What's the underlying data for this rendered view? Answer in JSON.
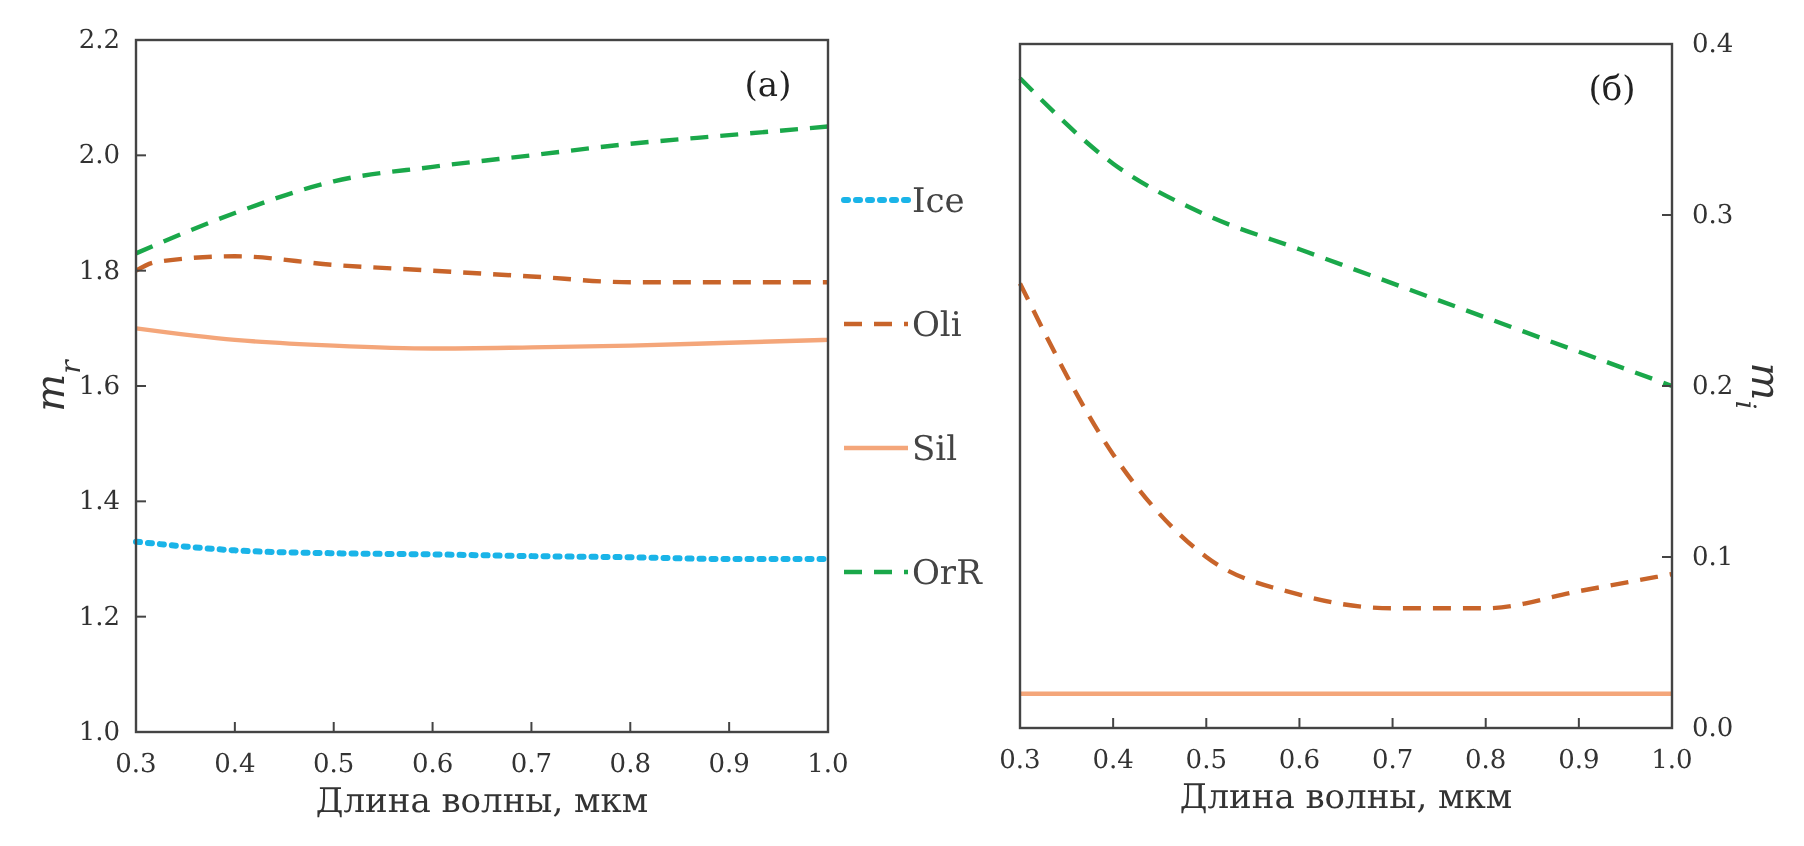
{
  "chart_data": [
    {
      "type": "line",
      "xlabel": "Длина волны, мкм",
      "ylabel": "m$_{r}$",
      "annotations": [
        "(a)"
      ],
      "xlim": [
        0.3,
        1.0
      ],
      "xticks": [
        {
          "value": 0.3,
          "label": "0.3"
        },
        {
          "value": 0.4,
          "label": "0.4"
        },
        {
          "value": 0.5,
          "label": "0.5"
        },
        {
          "value": 0.6,
          "label": "0.6"
        },
        {
          "value": 0.7,
          "label": "0.7"
        },
        {
          "value": 0.8,
          "label": "0.8"
        },
        {
          "value": 0.9,
          "label": "0.9"
        },
        {
          "value": 1.0,
          "label": "1.0"
        }
      ],
      "ylim": [
        1.0,
        2.2
      ],
      "yticks": [
        {
          "value": 1.0,
          "label": "1.0"
        },
        {
          "value": 1.2,
          "label": "1.2"
        },
        {
          "value": 1.4,
          "label": "1.4"
        },
        {
          "value": 1.6,
          "label": "1.6"
        },
        {
          "value": 1.8,
          "label": "1.8"
        },
        {
          "value": 2.0,
          "label": "2.0"
        },
        {
          "value": 2.2,
          "label": "2.2"
        }
      ],
      "grid": false,
      "legend": "right",
      "x": [
        0.3,
        0.4,
        0.5,
        0.6,
        0.7,
        0.8,
        0.9,
        1.0
      ],
      "series": [
        {
          "name": "Ice",
          "color": "#1ab4e8",
          "line_style": "dotted",
          "values": [
            1.33,
            1.315,
            1.31,
            1.308,
            1.305,
            1.303,
            1.3,
            1.3
          ]
        },
        {
          "name": "Oli",
          "color": "#c8642a",
          "line_style": "dashed",
          "x": [
            0.3,
            0.32,
            0.4,
            0.5,
            0.6,
            0.7,
            0.8,
            0.9,
            1.0
          ],
          "values": [
            1.8,
            1.815,
            1.825,
            1.81,
            1.8,
            1.79,
            1.78,
            1.78,
            1.78
          ]
        },
        {
          "name": "Sil",
          "color": "#f4a67a",
          "line_style": "solid",
          "values": [
            1.7,
            1.68,
            1.67,
            1.665,
            1.667,
            1.67,
            1.675,
            1.68
          ]
        },
        {
          "name": "OrR",
          "color": "#1aa84a",
          "line_style": "dashed",
          "values": [
            1.83,
            1.9,
            1.955,
            1.98,
            2.0,
            2.02,
            2.035,
            2.05
          ]
        }
      ]
    },
    {
      "type": "line",
      "xlabel": "Длина волны, мкм",
      "y2label": "m$_{i}$",
      "annotations": [
        "(б)"
      ],
      "xlim": [
        0.3,
        1.0
      ],
      "xticks": [
        {
          "value": 0.3,
          "label": "0.3"
        },
        {
          "value": 0.4,
          "label": "0.4"
        },
        {
          "value": 0.5,
          "label": "0.5"
        },
        {
          "value": 0.6,
          "label": "0.6"
        },
        {
          "value": 0.7,
          "label": "0.7"
        },
        {
          "value": 0.8,
          "label": "0.8"
        },
        {
          "value": 0.9,
          "label": "0.9"
        },
        {
          "value": 1.0,
          "label": "1.0"
        }
      ],
      "y2lim": [
        0.0,
        0.4
      ],
      "y2ticks": [
        {
          "value": 0.0,
          "label": "0.0"
        },
        0.1,
        0.2,
        0.3,
        0.4
      ],
      "grid": false,
      "x": [
        0.3,
        0.4,
        0.5,
        0.6,
        0.7,
        0.8,
        0.9,
        1.0
      ],
      "series": [
        {
          "color": "#c8642a",
          "line_style": "dashed",
          "axis": "y2",
          "values": [
            0.26,
            0.16,
            0.1,
            0.078,
            0.07,
            0.07,
            0.08,
            0.09
          ]
        },
        {
          "color": "#f4a67a",
          "line_style": "solid",
          "axis": "y2",
          "values": [
            0.02,
            0.02,
            0.02,
            0.02,
            0.02,
            0.02,
            0.02,
            0.02
          ]
        },
        {
          "color": "#1aa84a",
          "line_style": "dashed",
          "axis": "y2",
          "values": [
            0.38,
            0.33,
            0.3,
            0.28,
            0.26,
            0.24,
            0.22,
            0.2
          ]
        }
      ]
    }
  ]
}
